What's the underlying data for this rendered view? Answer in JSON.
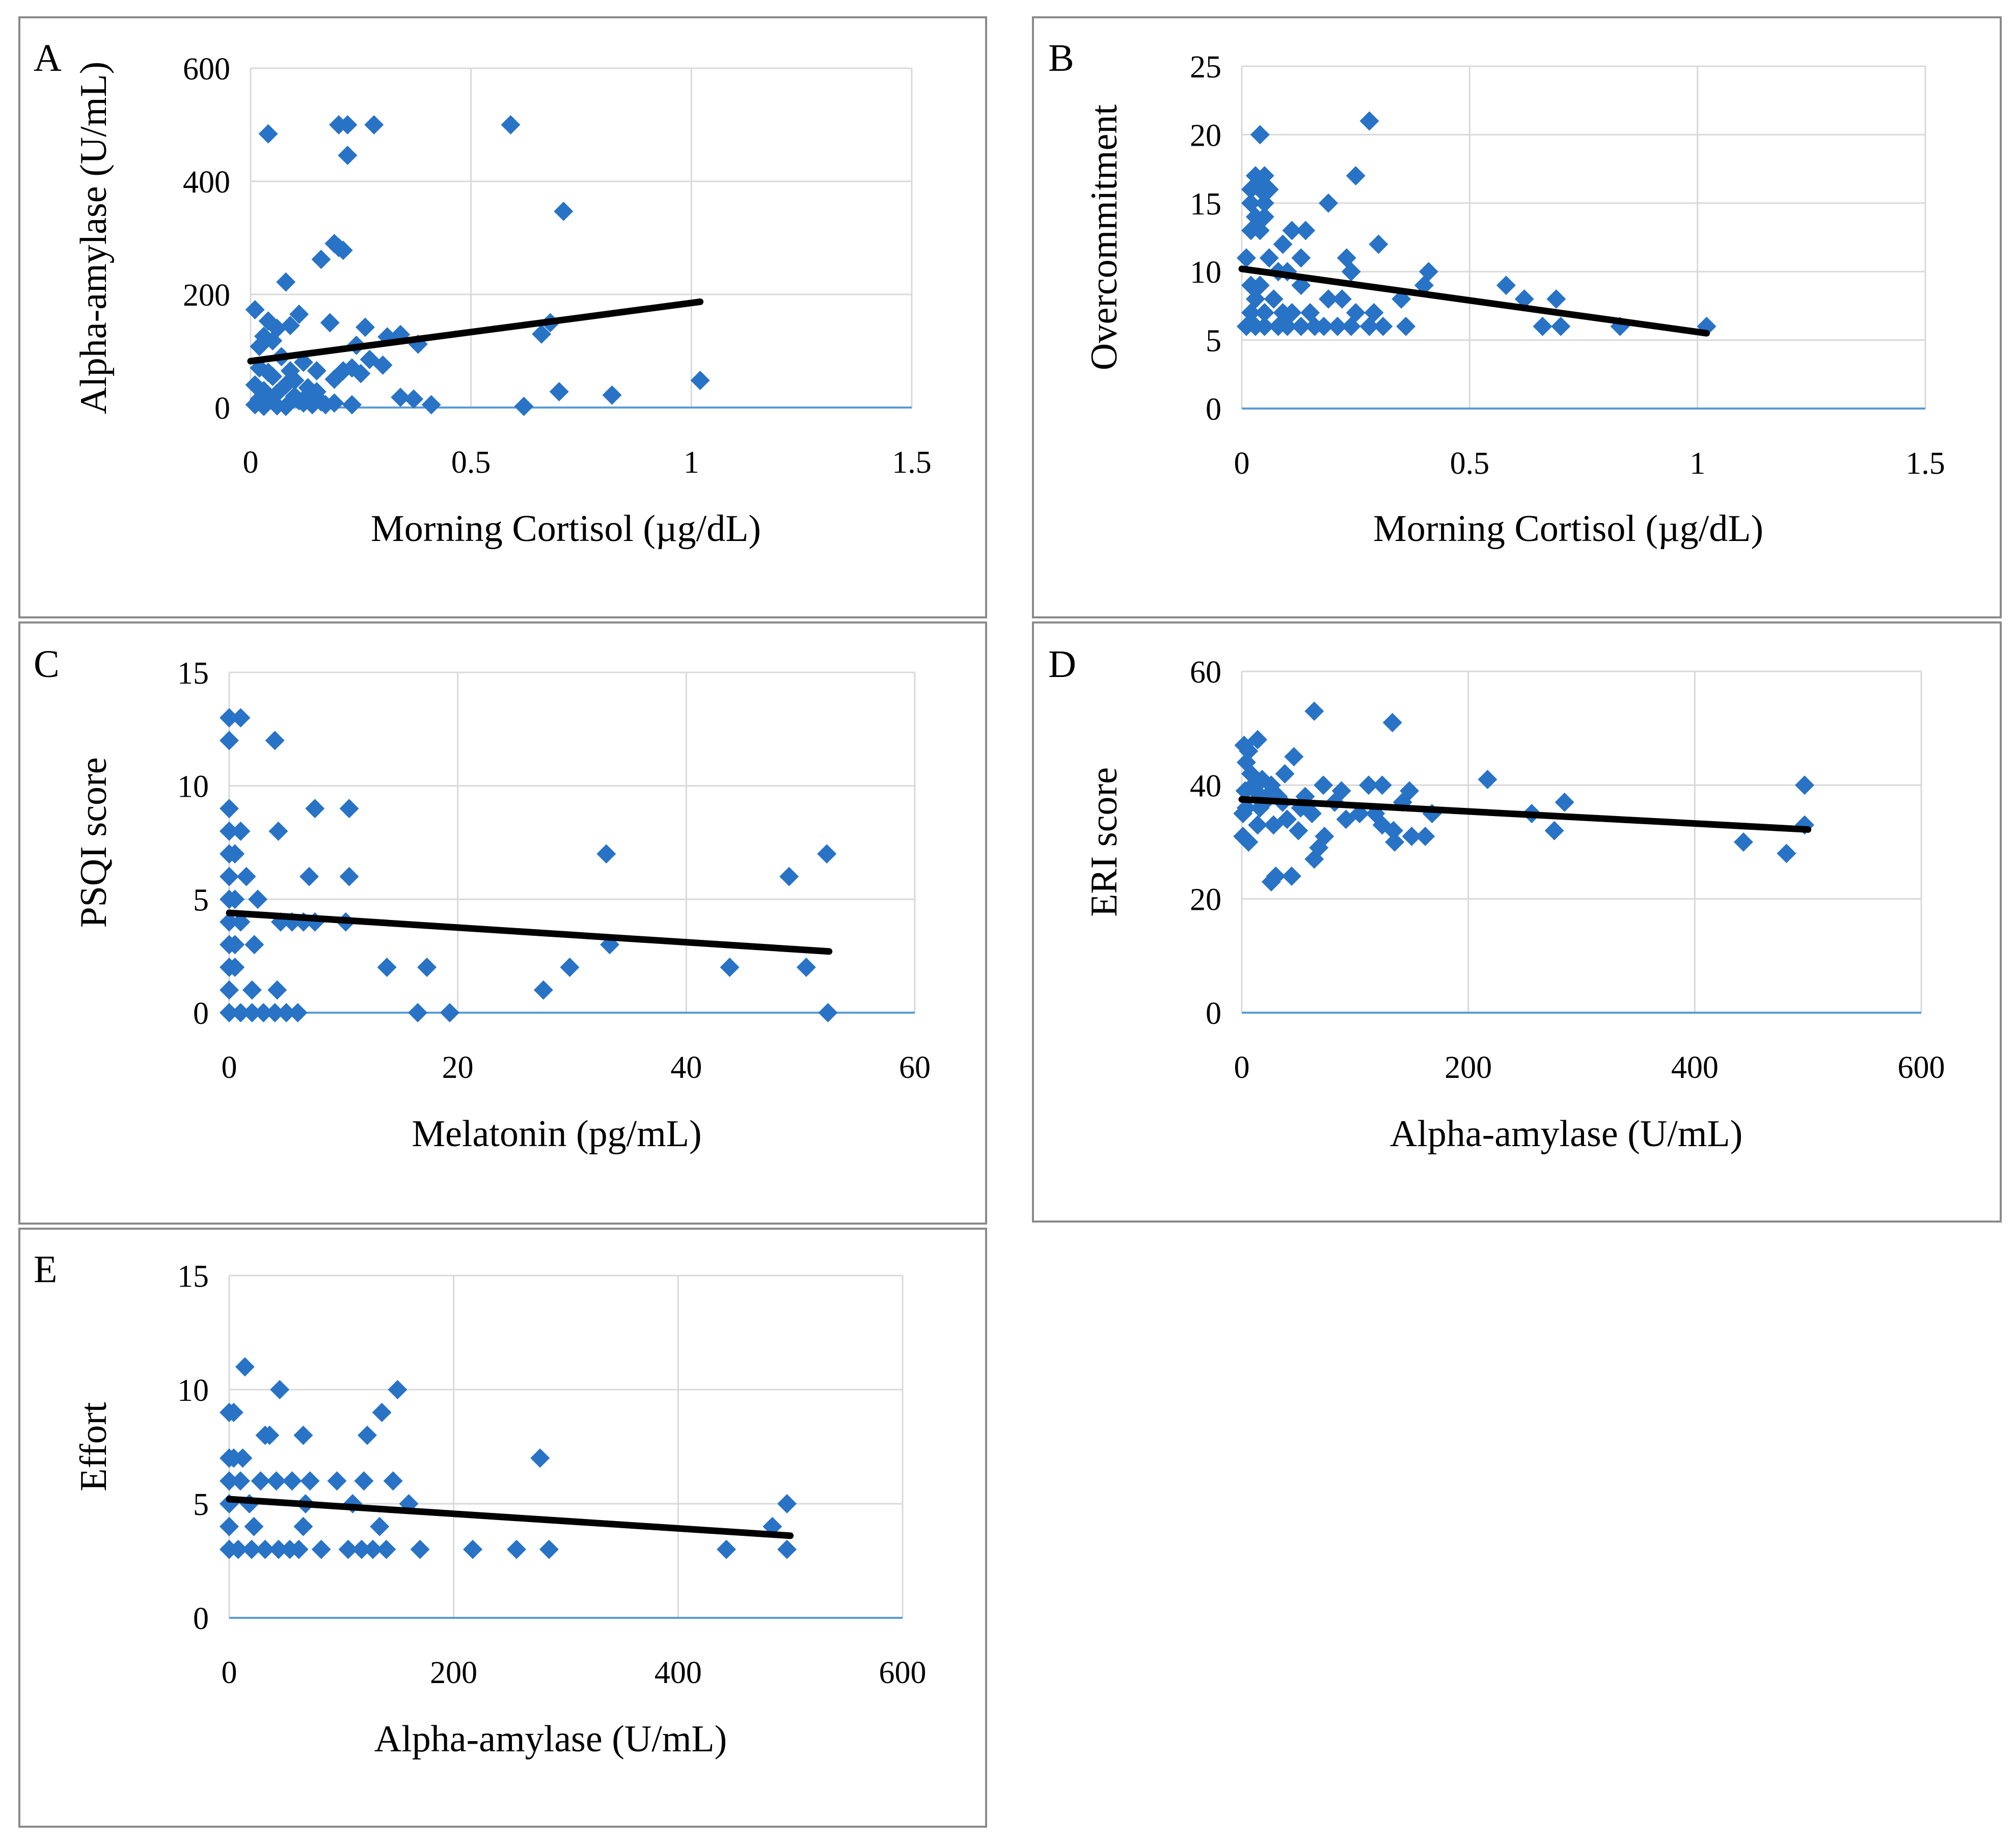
{
  "colors": {
    "marker": "#2873C6",
    "trend": "#000000",
    "grid": "#D9D9D9",
    "axis": "#5B9BD5",
    "border": "#8A8A8A"
  },
  "chart_data": [
    {
      "panel": "A",
      "type": "scatter",
      "xlabel": "Morning Cortisol (µg/dL)",
      "ylabel": "Alpha-amylase (U/mL)",
      "xlim": [
        0,
        1.5
      ],
      "ylim": [
        0,
        600
      ],
      "xticks": [
        0,
        0.5,
        1,
        1.5
      ],
      "xtick_labels": [
        "0",
        "0.5",
        "1",
        "1.5"
      ],
      "yticks": [
        0,
        200,
        400,
        600
      ],
      "ytick_labels": [
        "0",
        "200",
        "400",
        "600"
      ],
      "trendline": [
        [
          0,
          82
        ],
        [
          1.02,
          187
        ]
      ],
      "points": [
        [
          0.04,
          484
        ],
        [
          0.2,
          500
        ],
        [
          0.22,
          500
        ],
        [
          0.28,
          500
        ],
        [
          0.59,
          500
        ],
        [
          0.22,
          446
        ],
        [
          0.71,
          347
        ],
        [
          0.2,
          283
        ],
        [
          0.19,
          290
        ],
        [
          0.16,
          262
        ],
        [
          0.21,
          278
        ],
        [
          0.08,
          222
        ],
        [
          0.01,
          173
        ],
        [
          0.11,
          165
        ],
        [
          0.04,
          153
        ],
        [
          0.06,
          140
        ],
        [
          0.09,
          145
        ],
        [
          0.03,
          126
        ],
        [
          0.05,
          118
        ],
        [
          0.02,
          108
        ],
        [
          0.18,
          150
        ],
        [
          0.26,
          142
        ],
        [
          0.31,
          125
        ],
        [
          0.34,
          129
        ],
        [
          0.38,
          112
        ],
        [
          0.68,
          150
        ],
        [
          0.66,
          130
        ],
        [
          0.24,
          110
        ],
        [
          0.27,
          85
        ],
        [
          0.3,
          75
        ],
        [
          0.19,
          50
        ],
        [
          0.21,
          65
        ],
        [
          0.25,
          60
        ],
        [
          0.23,
          70
        ],
        [
          0.12,
          80
        ],
        [
          0.07,
          90
        ],
        [
          0.15,
          65
        ],
        [
          0.01,
          40
        ],
        [
          0.03,
          30
        ],
        [
          0.02,
          15
        ],
        [
          0.01,
          5
        ],
        [
          0.04,
          10
        ],
        [
          0.06,
          25
        ],
        [
          0.08,
          40
        ],
        [
          0.1,
          20
        ],
        [
          0.12,
          8
        ],
        [
          0.14,
          5
        ],
        [
          0.16,
          10
        ],
        [
          0.05,
          55
        ],
        [
          0.09,
          65
        ],
        [
          0.13,
          35
        ],
        [
          0.17,
          5
        ],
        [
          0.19,
          8
        ],
        [
          0.23,
          5
        ],
        [
          0.34,
          18
        ],
        [
          0.37,
          15
        ],
        [
          0.41,
          5
        ],
        [
          0.62,
          2
        ],
        [
          0.7,
          28
        ],
        [
          0.82,
          22
        ],
        [
          1.02,
          48
        ],
        [
          0.02,
          70
        ],
        [
          0.04,
          62
        ],
        [
          0.06,
          3
        ],
        [
          0.11,
          12
        ],
        [
          0.08,
          2
        ],
        [
          0.03,
          2
        ],
        [
          0.1,
          48
        ],
        [
          0.13,
          22
        ],
        [
          0.15,
          28
        ]
      ]
    },
    {
      "panel": "B",
      "type": "scatter",
      "xlabel": "Morning Cortisol (µg/dL)",
      "ylabel": "Overcommitment",
      "xlim": [
        0,
        1.5
      ],
      "ylim": [
        0,
        25
      ],
      "xticks": [
        0,
        0.5,
        1,
        1.5
      ],
      "xtick_labels": [
        "0",
        "0.5",
        "1",
        "1.5"
      ],
      "yticks": [
        0,
        5,
        10,
        15,
        20,
        25
      ],
      "ytick_labels": [
        "0",
        "5",
        "10",
        "15",
        "20",
        "25"
      ],
      "trendline": [
        [
          0,
          10.2
        ],
        [
          1.02,
          5.5
        ]
      ],
      "points": [
        [
          0.04,
          20
        ],
        [
          0.28,
          21
        ],
        [
          0.03,
          17
        ],
        [
          0.05,
          17
        ],
        [
          0.25,
          17
        ],
        [
          0.02,
          16
        ],
        [
          0.04,
          16
        ],
        [
          0.06,
          16
        ],
        [
          0.02,
          15
        ],
        [
          0.05,
          15
        ],
        [
          0.19,
          15
        ],
        [
          0.03,
          14
        ],
        [
          0.05,
          14
        ],
        [
          0.02,
          13
        ],
        [
          0.04,
          13
        ],
        [
          0.11,
          13
        ],
        [
          0.14,
          13
        ],
        [
          0.09,
          12
        ],
        [
          0.3,
          12
        ],
        [
          0.01,
          11
        ],
        [
          0.06,
          11
        ],
        [
          0.13,
          11
        ],
        [
          0.23,
          11
        ],
        [
          0.08,
          10
        ],
        [
          0.1,
          10
        ],
        [
          0.24,
          10
        ],
        [
          0.41,
          10
        ],
        [
          0.02,
          9
        ],
        [
          0.04,
          9
        ],
        [
          0.13,
          9
        ],
        [
          0.4,
          9
        ],
        [
          0.58,
          9
        ],
        [
          0.03,
          8
        ],
        [
          0.07,
          8
        ],
        [
          0.19,
          8
        ],
        [
          0.22,
          8
        ],
        [
          0.35,
          8
        ],
        [
          0.62,
          8
        ],
        [
          0.69,
          8
        ],
        [
          0.02,
          7
        ],
        [
          0.05,
          7
        ],
        [
          0.09,
          7
        ],
        [
          0.11,
          7
        ],
        [
          0.15,
          7
        ],
        [
          0.25,
          7
        ],
        [
          0.29,
          7
        ],
        [
          0.01,
          6
        ],
        [
          0.03,
          6
        ],
        [
          0.05,
          6
        ],
        [
          0.08,
          6
        ],
        [
          0.1,
          6
        ],
        [
          0.13,
          6
        ],
        [
          0.16,
          6
        ],
        [
          0.18,
          6
        ],
        [
          0.21,
          6
        ],
        [
          0.24,
          6
        ],
        [
          0.28,
          6
        ],
        [
          0.31,
          6
        ],
        [
          0.36,
          6
        ],
        [
          0.66,
          6
        ],
        [
          0.7,
          6
        ],
        [
          0.83,
          6
        ],
        [
          1.02,
          6
        ]
      ]
    },
    {
      "panel": "C",
      "type": "scatter",
      "xlabel": "Melatonin (pg/mL)",
      "ylabel": "PSQI score",
      "xlim": [
        0,
        60
      ],
      "ylim": [
        0,
        15
      ],
      "xticks": [
        0,
        20,
        40,
        60
      ],
      "xtick_labels": [
        "0",
        "20",
        "40",
        "60"
      ],
      "yticks": [
        0,
        5,
        10,
        15
      ],
      "ytick_labels": [
        "0",
        "5",
        "10",
        "15"
      ],
      "trendline": [
        [
          0,
          4.4
        ],
        [
          52.5,
          2.7
        ]
      ],
      "points": [
        [
          0,
          13
        ],
        [
          1,
          13
        ],
        [
          0,
          12
        ],
        [
          4,
          12
        ],
        [
          0,
          9
        ],
        [
          7.5,
          9
        ],
        [
          10.5,
          9
        ],
        [
          0,
          8
        ],
        [
          1,
          8
        ],
        [
          4.3,
          8
        ],
        [
          0,
          7
        ],
        [
          0.5,
          7
        ],
        [
          33,
          7
        ],
        [
          52.3,
          7
        ],
        [
          0,
          6
        ],
        [
          1.5,
          6
        ],
        [
          7,
          6
        ],
        [
          10.5,
          6
        ],
        [
          49,
          6
        ],
        [
          0,
          5
        ],
        [
          0.5,
          5
        ],
        [
          2.5,
          5
        ],
        [
          0,
          4
        ],
        [
          1,
          4
        ],
        [
          4.5,
          4
        ],
        [
          5.5,
          4
        ],
        [
          6.5,
          4
        ],
        [
          7.5,
          4
        ],
        [
          10.2,
          4
        ],
        [
          0,
          3
        ],
        [
          0.5,
          3
        ],
        [
          2.2,
          3
        ],
        [
          33.3,
          3
        ],
        [
          0,
          2
        ],
        [
          0.5,
          2
        ],
        [
          13.8,
          2
        ],
        [
          17.3,
          2
        ],
        [
          29.8,
          2
        ],
        [
          43.8,
          2
        ],
        [
          50.5,
          2
        ],
        [
          0,
          1
        ],
        [
          2,
          1
        ],
        [
          4.2,
          1
        ],
        [
          27.5,
          1
        ],
        [
          0,
          0
        ],
        [
          1,
          0
        ],
        [
          2,
          0
        ],
        [
          3,
          0
        ],
        [
          4,
          0
        ],
        [
          5,
          0
        ],
        [
          6,
          0
        ],
        [
          16.5,
          0
        ],
        [
          19.3,
          0
        ],
        [
          52.4,
          0
        ]
      ]
    },
    {
      "panel": "D",
      "type": "scatter",
      "xlabel": "Alpha-amylase (U/mL)",
      "ylabel": "ERI score",
      "xlim": [
        0,
        600
      ],
      "ylim": [
        0,
        60
      ],
      "xticks": [
        0,
        200,
        400,
        600
      ],
      "xtick_labels": [
        "0",
        "200",
        "400",
        "600"
      ],
      "yticks": [
        0,
        20,
        40,
        60
      ],
      "ytick_labels": [
        "0",
        "20",
        "40",
        "60"
      ],
      "trendline": [
        [
          0,
          37.5
        ],
        [
          500,
          32.2
        ]
      ],
      "points": [
        [
          64,
          53
        ],
        [
          133,
          51
        ],
        [
          14,
          48
        ],
        [
          2,
          47
        ],
        [
          6,
          46
        ],
        [
          46,
          45
        ],
        [
          4,
          44
        ],
        [
          38,
          42
        ],
        [
          18,
          41
        ],
        [
          217,
          41
        ],
        [
          10,
          40
        ],
        [
          26,
          40
        ],
        [
          72,
          40
        ],
        [
          112,
          40
        ],
        [
          124,
          40
        ],
        [
          497,
          40
        ],
        [
          3,
          39
        ],
        [
          32,
          38
        ],
        [
          56,
          38
        ],
        [
          148,
          39
        ],
        [
          82,
          37
        ],
        [
          142,
          37
        ],
        [
          285,
          37
        ],
        [
          4,
          36
        ],
        [
          20,
          37
        ],
        [
          62,
          35
        ],
        [
          104,
          35
        ],
        [
          168,
          35
        ],
        [
          256,
          35
        ],
        [
          1,
          35
        ],
        [
          14,
          33
        ],
        [
          40,
          34
        ],
        [
          92,
          34
        ],
        [
          118,
          35
        ],
        [
          28,
          33
        ],
        [
          50,
          32
        ],
        [
          124,
          33
        ],
        [
          134,
          32
        ],
        [
          150,
          31
        ],
        [
          162,
          31
        ],
        [
          276,
          32
        ],
        [
          497,
          33
        ],
        [
          1,
          31
        ],
        [
          6,
          30
        ],
        [
          68,
          29
        ],
        [
          73,
          31
        ],
        [
          135,
          30
        ],
        [
          443,
          30
        ],
        [
          64,
          27
        ],
        [
          481,
          28
        ],
        [
          30,
          24
        ],
        [
          44,
          24
        ],
        [
          26,
          23
        ],
        [
          8,
          42
        ],
        [
          12,
          39
        ],
        [
          16,
          36
        ],
        [
          22,
          38
        ],
        [
          36,
          37
        ],
        [
          52,
          36
        ],
        [
          88,
          39
        ]
      ]
    },
    {
      "panel": "E",
      "type": "scatter",
      "xlabel": "Alpha-amylase (U/mL)",
      "ylabel": "Effort",
      "xlim": [
        0,
        600
      ],
      "ylim": [
        0,
        15
      ],
      "xticks": [
        0,
        200,
        400,
        600
      ],
      "xtick_labels": [
        "0",
        "200",
        "400",
        "600"
      ],
      "yticks": [
        0,
        5,
        10,
        15
      ],
      "ytick_labels": [
        "0",
        "5",
        "10",
        "15"
      ],
      "trendline": [
        [
          0,
          5.2
        ],
        [
          500,
          3.6
        ]
      ],
      "points": [
        [
          14,
          11
        ],
        [
          45,
          10
        ],
        [
          150,
          10
        ],
        [
          0,
          9
        ],
        [
          4,
          9
        ],
        [
          136,
          9
        ],
        [
          32,
          8
        ],
        [
          36,
          8
        ],
        [
          66,
          8
        ],
        [
          123,
          8
        ],
        [
          0,
          7
        ],
        [
          4,
          7
        ],
        [
          12,
          7
        ],
        [
          277,
          7
        ],
        [
          0,
          6
        ],
        [
          10,
          6
        ],
        [
          28,
          6
        ],
        [
          42,
          6
        ],
        [
          56,
          6
        ],
        [
          72,
          6
        ],
        [
          96,
          6
        ],
        [
          120,
          6
        ],
        [
          146,
          6
        ],
        [
          0,
          5
        ],
        [
          18,
          5
        ],
        [
          68,
          5
        ],
        [
          110,
          5
        ],
        [
          160,
          5
        ],
        [
          497,
          5
        ],
        [
          0,
          4
        ],
        [
          22,
          4
        ],
        [
          66,
          4
        ],
        [
          134,
          4
        ],
        [
          484,
          4
        ],
        [
          0,
          3
        ],
        [
          8,
          3
        ],
        [
          20,
          3
        ],
        [
          32,
          3
        ],
        [
          44,
          3
        ],
        [
          54,
          3
        ],
        [
          62,
          3
        ],
        [
          82,
          3
        ],
        [
          106,
          3
        ],
        [
          118,
          3
        ],
        [
          128,
          3
        ],
        [
          140,
          3
        ],
        [
          170,
          3
        ],
        [
          217,
          3
        ],
        [
          256,
          3
        ],
        [
          285,
          3
        ],
        [
          443,
          3
        ],
        [
          497,
          3
        ]
      ]
    }
  ]
}
